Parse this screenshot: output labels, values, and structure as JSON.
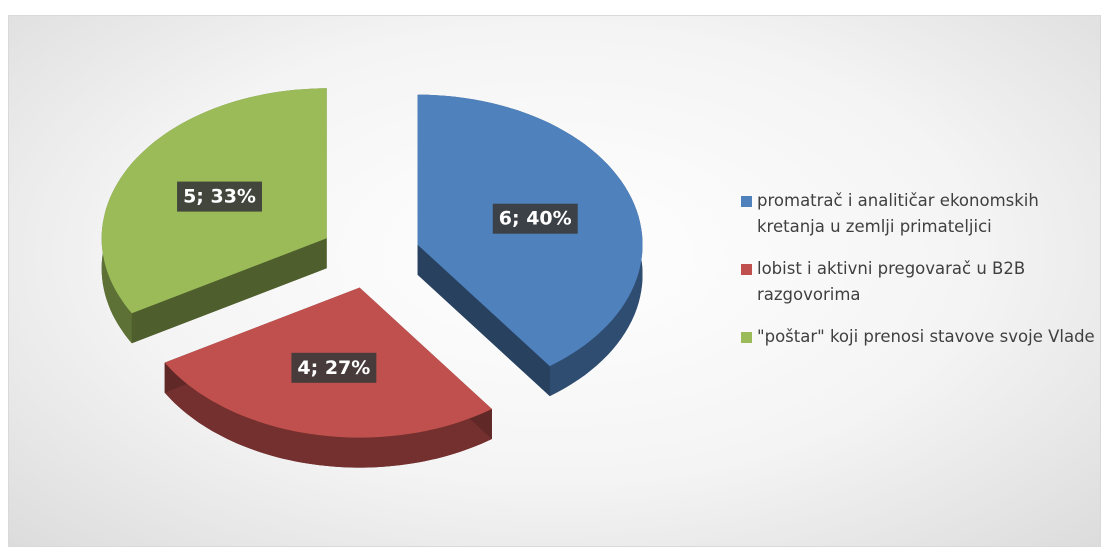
{
  "chart_data": {
    "type": "pie",
    "categories": [
      "promatrač i analitičar ekonomskih kretanja u zemlji primateljici",
      "lobist i aktivni pregovarač u B2B razgovorima",
      "\"poštar\" koji prenosi stavove svoje Vlade"
    ],
    "values": [
      6,
      4,
      5
    ],
    "value_labels": [
      "6; 40%",
      "4; 27%",
      "5; 33%"
    ],
    "colors": [
      "#4f81bd",
      "#c0504d",
      "#9bbb59"
    ],
    "legend": "right"
  }
}
